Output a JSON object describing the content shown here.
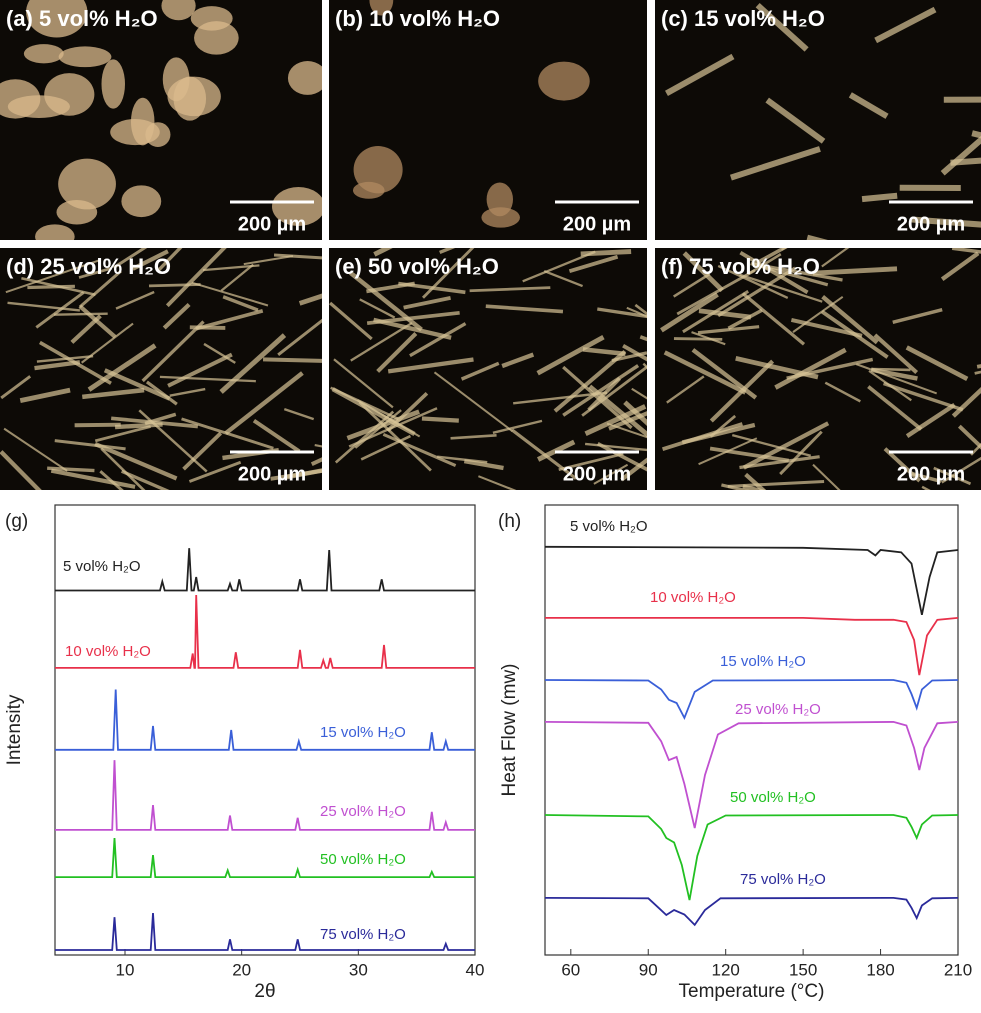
{
  "panels": [
    {
      "label": "(a) 5 vol% H₂O",
      "scale_bar": "200 µm"
    },
    {
      "label": "(b) 10 vol% H₂O",
      "scale_bar": "200 µm"
    },
    {
      "label": "(c) 15 vol% H₂O",
      "scale_bar": "200 µm"
    },
    {
      "label": "(d) 25 vol% H₂O",
      "scale_bar": "200 µm"
    },
    {
      "label": "(e) 50 vol% H₂O",
      "scale_bar": "200 µm"
    },
    {
      "label": "(f) 75 vol% H₂O",
      "scale_bar": "200 µm"
    }
  ],
  "chart_data": [
    {
      "type": "line",
      "panel": "(g)",
      "x_label": "2θ",
      "y_label": "Intensity",
      "xlim": [
        4,
        40
      ],
      "xticks": [
        10,
        20,
        30,
        40
      ],
      "ylim": [
        0,
        100
      ],
      "series": [
        {
          "name": "5 vol% H₂O",
          "color": "#222222",
          "x": [
            4,
            13,
            13.2,
            13.4,
            15.3,
            15.5,
            15.7,
            15.9,
            16.1,
            16.3,
            18.8,
            19,
            19.2,
            19.6,
            19.8,
            20,
            24.8,
            25,
            25.2,
            27.3,
            27.5,
            27.7,
            31.8,
            32,
            32.2,
            40
          ],
          "values": [
            81,
            81,
            83,
            81,
            81,
            90.4,
            81,
            81,
            84,
            81,
            81,
            82.5,
            81,
            81,
            83.5,
            81,
            81,
            83.5,
            81,
            81,
            90,
            81,
            81,
            83.5,
            81,
            81
          ]
        },
        {
          "name": "10 vol% H₂O",
          "color": "#e8304a",
          "x": [
            4,
            15.6,
            15.8,
            15.95,
            16,
            16.1,
            16.3,
            19.3,
            19.5,
            19.7,
            24.8,
            25,
            25.2,
            26.8,
            27,
            27.2,
            27.4,
            27.6,
            27.8,
            32,
            32.2,
            32.4,
            40
          ],
          "values": [
            63.8,
            63.8,
            67,
            63.8,
            63.8,
            80,
            63.8,
            63.8,
            67.3,
            63.8,
            63.8,
            67.8,
            63.8,
            63.8,
            65.5,
            63.8,
            63.8,
            66,
            63.8,
            63.8,
            68.9,
            63.8,
            63.8
          ]
        },
        {
          "name": "15 vol% H₂O",
          "color": "#3a5fd8",
          "x": [
            4,
            9,
            9.2,
            9.4,
            12.2,
            12.4,
            12.6,
            18.9,
            19.1,
            19.3,
            24.7,
            24.9,
            25.1,
            36.1,
            36.3,
            36.5,
            37.3,
            37.5,
            37.7,
            40
          ],
          "values": [
            45.6,
            45.6,
            59,
            45.6,
            45.6,
            50.9,
            45.6,
            45.6,
            50,
            45.6,
            45.6,
            47.5,
            45.6,
            45.6,
            49.5,
            45.6,
            45.6,
            47.5,
            45.6,
            45.6
          ]
        },
        {
          "name": "25 vol% H₂O",
          "color": "#c050d0",
          "x": [
            4,
            8.9,
            9.1,
            9.3,
            12.2,
            12.4,
            12.6,
            18.8,
            19,
            19.2,
            24.6,
            24.8,
            25,
            36.1,
            36.3,
            36.5,
            37.3,
            37.5,
            37.7,
            40
          ],
          "values": [
            27.8,
            27.8,
            43.3,
            27.8,
            27.8,
            33.3,
            27.8,
            27.8,
            31,
            27.8,
            27.8,
            30.5,
            27.8,
            27.8,
            31.8,
            27.8,
            27.8,
            29.5,
            27.8,
            27.8
          ]
        },
        {
          "name": "50 vol% H₂O",
          "color": "#22c022",
          "x": [
            4,
            8.9,
            9.1,
            9.3,
            12.2,
            12.4,
            12.6,
            18.6,
            18.8,
            19,
            24.6,
            24.8,
            25,
            36.1,
            36.3,
            36.5,
            40
          ],
          "values": [
            17.3,
            17.3,
            26,
            17.3,
            17.3,
            22.2,
            17.3,
            17.3,
            18.8,
            17.3,
            17.3,
            19,
            17.3,
            17.3,
            18.5,
            17.3,
            17.3
          ]
        },
        {
          "name": "75 vol% H₂O",
          "color": "#2a2a9a",
          "x": [
            4,
            8.9,
            9.1,
            9.3,
            12.2,
            12.4,
            12.6,
            18.8,
            19,
            19.2,
            24.6,
            24.8,
            25,
            37.3,
            37.5,
            37.7,
            40
          ],
          "values": [
            1.1,
            1.1,
            8.4,
            1.1,
            1.1,
            9.3,
            1.1,
            1.1,
            3.5,
            1.1,
            1.1,
            3.5,
            1.1,
            1.1,
            2.5,
            1.1,
            1.1
          ]
        }
      ]
    },
    {
      "type": "line",
      "panel": "(h)",
      "x_label": "Temperature (°C)",
      "y_label": "Heat Flow (mw)",
      "xlim": [
        50,
        210
      ],
      "xticks": [
        60,
        90,
        120,
        150,
        180,
        210
      ],
      "ylim": [
        0,
        100
      ],
      "series": [
        {
          "name": "5 vol% H₂O",
          "color": "#222222",
          "x": [
            50,
            150,
            175,
            178,
            180,
            188,
            192,
            196,
            199,
            202,
            210
          ],
          "values": [
            90.7,
            90.5,
            90,
            88.8,
            90,
            89.5,
            87,
            75.6,
            84,
            89.5,
            90
          ]
        },
        {
          "name": "10 vol% H₂O",
          "color": "#e8304a",
          "x": [
            50,
            150,
            170,
            185,
            190,
            193,
            195,
            198,
            202,
            210
          ],
          "values": [
            74.9,
            74.9,
            74.5,
            74.5,
            74,
            70,
            62.2,
            71,
            74.5,
            74.9
          ]
        },
        {
          "name": "15 vol% H₂O",
          "color": "#3a5fd8",
          "x": [
            50,
            90,
            95,
            98,
            101,
            104,
            108,
            115,
            185,
            190,
            192,
            194,
            196,
            200,
            210
          ],
          "values": [
            61.1,
            61,
            59,
            56.7,
            56,
            52.7,
            58.5,
            61,
            61.1,
            60.5,
            58,
            54.9,
            59,
            61,
            61.1
          ]
        },
        {
          "name": "25 vol% H₂O",
          "color": "#c050d0",
          "x": [
            50,
            90,
            95,
            98,
            101,
            104,
            108,
            112,
            117,
            125,
            185,
            190,
            193,
            195,
            197,
            202,
            210
          ],
          "values": [
            51.8,
            51.6,
            47.5,
            43.3,
            44,
            38,
            28.2,
            40,
            49,
            51.5,
            51.8,
            51,
            46,
            41.1,
            46,
            51.5,
            51.8
          ]
        },
        {
          "name": "50 vol% H₂O",
          "color": "#22c022",
          "x": [
            50,
            90,
            95,
            97,
            100,
            103,
            106,
            109,
            113,
            120,
            185,
            190,
            192,
            194,
            196,
            200,
            210
          ],
          "values": [
            31.1,
            30.8,
            28,
            26,
            25,
            20,
            12.2,
            22,
            29,
            31,
            31.1,
            30.5,
            28.5,
            26,
            29,
            31,
            31.1
          ]
        },
        {
          "name": "75 vol% H₂O",
          "color": "#2a2a9a",
          "x": [
            50,
            90,
            94,
            97,
            100,
            104,
            108,
            112,
            118,
            185,
            190,
            192,
            194,
            196,
            200,
            210
          ],
          "values": [
            12.7,
            12.6,
            10.5,
            8.9,
            10,
            9,
            6.7,
            10,
            12.6,
            12.7,
            12.3,
            10.5,
            8.2,
            11,
            12.6,
            12.7
          ]
        }
      ]
    }
  ]
}
